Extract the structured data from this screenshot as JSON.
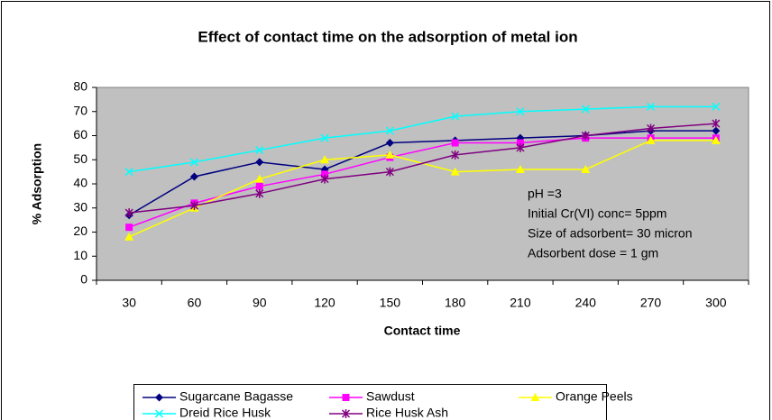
{
  "chart_data": {
    "type": "line",
    "title": "Effect of contact time on the adsorption of metal ion",
    "x_label": "Contact time",
    "y_label": "% Adsorption",
    "categories": [
      30,
      60,
      90,
      120,
      150,
      180,
      210,
      240,
      270,
      300
    ],
    "series": [
      {
        "name": "Sugarcane Bagasse",
        "color": "#000080",
        "marker": "diamond",
        "values": [
          27,
          43,
          49,
          46,
          57,
          58,
          59,
          60,
          62,
          62
        ]
      },
      {
        "name": "Sawdust",
        "color": "#FF00FF",
        "marker": "square",
        "values": [
          22,
          32,
          39,
          44,
          51,
          57,
          57,
          59,
          59,
          59
        ]
      },
      {
        "name": "Orange Peels",
        "color": "#FFFF00",
        "marker": "triangle",
        "values": [
          18,
          30,
          42,
          50,
          52,
          45,
          46,
          46,
          58,
          58
        ]
      },
      {
        "name": "Dreid Rice Husk",
        "color": "#00FFFF",
        "marker": "x",
        "values": [
          45,
          49,
          54,
          59,
          62,
          68,
          70,
          71,
          72,
          72
        ]
      },
      {
        "name": "Rice Husk Ash",
        "color": "#800080",
        "marker": "asterisk",
        "values": [
          28,
          31,
          36,
          42,
          45,
          52,
          55,
          60,
          63,
          65
        ]
      }
    ],
    "annotations": [
      "pH =3",
      "Initial Cr(VI) conc= 5ppm",
      "Size of adsorbent= 30 micron",
      "Adsorbent dose = 1 gm"
    ],
    "ylim": [
      0,
      80
    ],
    "yticks": [
      0,
      10,
      20,
      30,
      40,
      50,
      60,
      70,
      80
    ],
    "grid": false,
    "legend": "bottom",
    "plot_background": "#C0C0C0"
  }
}
